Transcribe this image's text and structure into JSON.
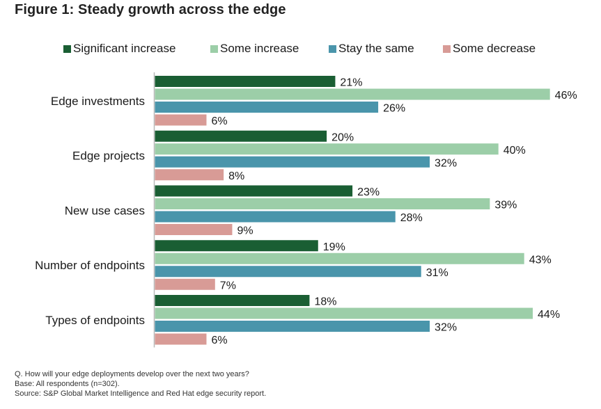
{
  "chart_data": {
    "type": "bar",
    "orientation": "horizontal",
    "title": "Figure 1: Steady growth across the edge",
    "categories": [
      "Edge investments",
      "Edge projects",
      "New use cases",
      "Number of endpoints",
      "Types of endpoints"
    ],
    "series": [
      {
        "name": "Significant increase",
        "color": "#1a5e33",
        "values": [
          21,
          20,
          23,
          19,
          18
        ]
      },
      {
        "name": "Some increase",
        "color": "#9ccea8",
        "values": [
          46,
          40,
          39,
          43,
          44
        ]
      },
      {
        "name": "Stay the same",
        "color": "#4a95ab",
        "values": [
          26,
          32,
          28,
          31,
          32
        ]
      },
      {
        "name": "Some decrease",
        "color": "#d89b96",
        "values": [
          6,
          8,
          9,
          7,
          6
        ]
      }
    ],
    "value_suffix": "%",
    "xlabel": "",
    "ylabel": "",
    "xlim": [
      0,
      50
    ],
    "grid": false,
    "legend_position": "top"
  },
  "footnote": {
    "question": "Q. How will your edge deployments develop over the next two years?",
    "base": "Base: All respondents (n=302).",
    "source": "Source: S&P Global Market Intelligence and Red Hat edge security report."
  }
}
